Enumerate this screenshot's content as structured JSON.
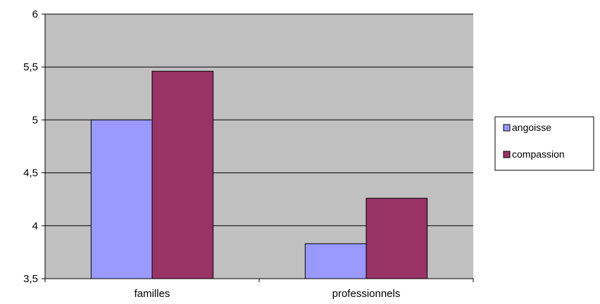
{
  "chart_data": {
    "type": "bar",
    "categories": [
      "familles",
      "professionnels"
    ],
    "series": [
      {
        "name": "angoisse",
        "values": [
          5.0,
          3.83
        ],
        "color": "#9999ff"
      },
      {
        "name": "compassion",
        "values": [
          5.46,
          4.26
        ],
        "color": "#993366"
      }
    ],
    "ylim": [
      3.5,
      6
    ],
    "yticks": [
      3.5,
      4,
      4.5,
      5,
      5.5,
      6
    ],
    "ytick_labels": [
      "3,5",
      "4",
      "4,5",
      "5",
      "5,5",
      "6"
    ],
    "grid": true,
    "legend_position": "right",
    "plot_background": "#c0c0c0"
  }
}
